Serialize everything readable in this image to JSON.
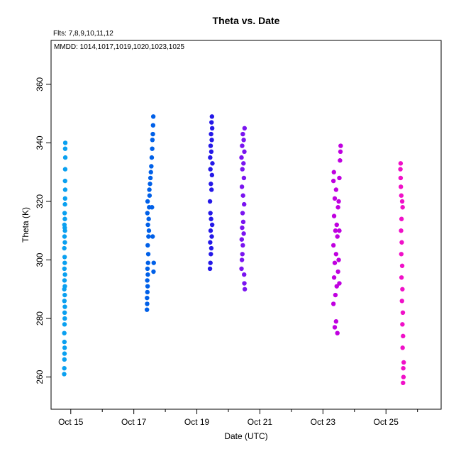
{
  "chart_data": {
    "type": "scatter",
    "title": "Theta  vs. Date",
    "subtitle": "Flts: 7,8,9,10,11,12",
    "annotation": "MMDD: 1014,1017,1019,1020,1023,1025",
    "xlabel": "Date (UTC)",
    "ylabel": "Theta (K)",
    "xlim": [
      "2014-10-14T09:00",
      "2014-10-26T18:00"
    ],
    "ylim": [
      249,
      375
    ],
    "x_ticks": [
      "2014-10-15",
      "2014-10-17",
      "2014-10-19",
      "2014-10-21",
      "2014-10-23",
      "2014-10-25"
    ],
    "x_tick_labels": [
      "Oct 15",
      "Oct 17",
      "Oct 19",
      "Oct 21",
      "Oct 23",
      "Oct 25"
    ],
    "y_ticks": [
      260,
      280,
      300,
      320,
      340,
      360
    ],
    "grid": false,
    "legend": "none",
    "series": [
      {
        "color": "#0aa0f0",
        "points": [
          [
            "2014-10-14T19:00",
            261
          ],
          [
            "2014-10-14T19:05",
            263
          ],
          [
            "2014-10-14T19:10",
            266
          ],
          [
            "2014-10-14T19:15",
            268
          ],
          [
            "2014-10-14T19:20",
            270
          ],
          [
            "2014-10-14T19:10",
            272
          ],
          [
            "2014-10-14T19:05",
            275
          ],
          [
            "2014-10-14T19:15",
            278
          ],
          [
            "2014-10-14T19:25",
            280
          ],
          [
            "2014-10-14T19:20",
            282
          ],
          [
            "2014-10-14T19:30",
            284
          ],
          [
            "2014-10-14T19:10",
            286
          ],
          [
            "2014-10-14T19:25",
            288
          ],
          [
            "2014-10-14T19:05",
            290
          ],
          [
            "2014-10-14T19:30",
            291
          ],
          [
            "2014-10-14T19:15",
            293
          ],
          [
            "2014-10-14T19:35",
            295
          ],
          [
            "2014-10-14T19:10",
            297
          ],
          [
            "2014-10-14T19:25",
            299
          ],
          [
            "2014-10-14T19:20",
            301
          ],
          [
            "2014-10-14T19:05",
            304
          ],
          [
            "2014-10-14T19:30",
            306
          ],
          [
            "2014-10-14T19:15",
            308
          ],
          [
            "2014-10-14T19:35",
            310
          ],
          [
            "2014-10-14T19:25",
            311
          ],
          [
            "2014-10-14T19:10",
            312
          ],
          [
            "2014-10-14T19:30",
            314
          ],
          [
            "2014-10-14T19:20",
            316
          ],
          [
            "2014-10-14T19:35",
            319
          ],
          [
            "2014-10-14T19:40",
            321
          ],
          [
            "2014-10-14T19:45",
            324
          ],
          [
            "2014-10-14T19:40",
            327
          ],
          [
            "2014-10-14T19:45",
            331
          ],
          [
            "2014-10-14T19:50",
            335
          ],
          [
            "2014-10-14T19:45",
            338
          ],
          [
            "2014-10-14T19:50",
            340
          ]
        ]
      },
      {
        "color": "#0060e8",
        "points": [
          [
            "2014-10-17T10:00",
            283
          ],
          [
            "2014-10-17T10:10",
            285
          ],
          [
            "2014-10-17T10:05",
            287
          ],
          [
            "2014-10-17T10:20",
            289
          ],
          [
            "2014-10-17T10:30",
            291
          ],
          [
            "2014-10-17T10:15",
            293
          ],
          [
            "2014-10-17T10:40",
            295
          ],
          [
            "2014-10-17T10:25",
            297
          ],
          [
            "2014-10-17T10:50",
            299
          ],
          [
            "2014-10-17T11:00",
            302
          ],
          [
            "2014-10-17T10:35",
            305
          ],
          [
            "2014-10-17T11:10",
            308
          ],
          [
            "2014-10-17T11:30",
            310
          ],
          [
            "2014-10-17T10:45",
            312
          ],
          [
            "2014-10-17T11:20",
            314
          ],
          [
            "2014-10-17T10:20",
            316
          ],
          [
            "2014-10-17T11:40",
            318
          ],
          [
            "2014-10-17T10:30",
            320
          ],
          [
            "2014-10-17T12:00",
            322
          ],
          [
            "2014-10-17T11:50",
            324
          ],
          [
            "2014-10-17T12:20",
            326
          ],
          [
            "2014-10-17T12:40",
            328
          ],
          [
            "2014-10-17T13:00",
            330
          ],
          [
            "2014-10-17T13:20",
            332
          ],
          [
            "2014-10-17T13:40",
            335
          ],
          [
            "2014-10-17T14:00",
            338
          ],
          [
            "2014-10-17T14:10",
            341
          ],
          [
            "2014-10-17T14:30",
            343
          ],
          [
            "2014-10-17T14:40",
            346
          ],
          [
            "2014-10-17T14:50",
            349
          ],
          [
            "2014-10-17T15:00",
            296
          ],
          [
            "2014-10-17T15:10",
            299
          ],
          [
            "2014-10-17T14:20",
            308
          ],
          [
            "2014-10-17T13:50",
            318
          ]
        ]
      },
      {
        "color": "#2418e8",
        "points": [
          [
            "2014-10-19T10:00",
            297
          ],
          [
            "2014-10-19T10:20",
            299
          ],
          [
            "2014-10-19T10:40",
            302
          ],
          [
            "2014-10-19T11:00",
            304
          ],
          [
            "2014-10-19T10:10",
            306
          ],
          [
            "2014-10-19T11:20",
            308
          ],
          [
            "2014-10-19T10:30",
            310
          ],
          [
            "2014-10-19T11:40",
            312
          ],
          [
            "2014-10-19T10:50",
            314
          ],
          [
            "2014-10-19T10:20",
            316
          ],
          [
            "2014-10-19T10:00",
            320
          ],
          [
            "2014-10-19T11:10",
            324
          ],
          [
            "2014-10-19T10:40",
            326
          ],
          [
            "2014-10-19T11:30",
            329
          ],
          [
            "2014-10-19T10:20",
            331
          ],
          [
            "2014-10-19T11:50",
            333
          ],
          [
            "2014-10-19T10:10",
            335
          ],
          [
            "2014-10-19T11:00",
            337
          ],
          [
            "2014-10-19T10:30",
            339
          ],
          [
            "2014-10-19T11:20",
            341
          ],
          [
            "2014-10-19T10:50",
            343
          ],
          [
            "2014-10-19T11:40",
            345
          ],
          [
            "2014-10-19T11:10",
            347
          ],
          [
            "2014-10-19T11:30",
            349
          ]
        ]
      },
      {
        "color": "#7a14f0",
        "points": [
          [
            "2014-10-20T10:00",
            297
          ],
          [
            "2014-10-20T10:20",
            300
          ],
          [
            "2014-10-20T10:40",
            302
          ],
          [
            "2014-10-20T12:30",
            290
          ],
          [
            "2014-10-20T12:10",
            292
          ],
          [
            "2014-10-20T12:00",
            295
          ],
          [
            "2014-10-20T11:00",
            305
          ],
          [
            "2014-10-20T10:10",
            307
          ],
          [
            "2014-10-20T11:40",
            309
          ],
          [
            "2014-10-20T10:30",
            311
          ],
          [
            "2014-10-20T11:20",
            313
          ],
          [
            "2014-10-20T10:50",
            316
          ],
          [
            "2014-10-20T12:00",
            319
          ],
          [
            "2014-10-20T11:10",
            322
          ],
          [
            "2014-10-20T10:20",
            325
          ],
          [
            "2014-10-20T11:50",
            328
          ],
          [
            "2014-10-20T10:40",
            331
          ],
          [
            "2014-10-20T11:30",
            333
          ],
          [
            "2014-10-20T10:00",
            335
          ],
          [
            "2014-10-20T12:10",
            337
          ],
          [
            "2014-10-20T10:30",
            339
          ],
          [
            "2014-10-20T11:40",
            341
          ],
          [
            "2014-10-20T11:00",
            343
          ],
          [
            "2014-10-20T12:20",
            345
          ]
        ]
      },
      {
        "color": "#c000e0",
        "points": [
          [
            "2014-10-23T09:00",
            277
          ],
          [
            "2014-10-23T10:00",
            279
          ],
          [
            "2014-10-23T11:00",
            275
          ],
          [
            "2014-10-23T08:00",
            285
          ],
          [
            "2014-10-23T09:30",
            288
          ],
          [
            "2014-10-23T10:30",
            291
          ],
          [
            "2014-10-23T08:30",
            294
          ],
          [
            "2014-10-23T11:30",
            296
          ],
          [
            "2014-10-23T09:00",
            299
          ],
          [
            "2014-10-23T10:00",
            302
          ],
          [
            "2014-10-23T08:00",
            305
          ],
          [
            "2014-10-23T11:00",
            308
          ],
          [
            "2014-10-23T09:30",
            310
          ],
          [
            "2014-10-23T10:30",
            312
          ],
          [
            "2014-10-23T08:30",
            315
          ],
          [
            "2014-10-23T11:30",
            318
          ],
          [
            "2014-10-23T09:00",
            321
          ],
          [
            "2014-10-23T10:00",
            324
          ],
          [
            "2014-10-23T08:00",
            327
          ],
          [
            "2014-10-23T08:20",
            330
          ],
          [
            "2014-10-23T12:30",
            292
          ],
          [
            "2014-10-23T12:00",
            300
          ],
          [
            "2014-10-23T12:30",
            310
          ],
          [
            "2014-10-23T12:00",
            320
          ],
          [
            "2014-10-23T12:30",
            328
          ],
          [
            "2014-10-23T13:00",
            334
          ],
          [
            "2014-10-23T13:20",
            337
          ],
          [
            "2014-10-23T13:30",
            339
          ]
        ]
      },
      {
        "color": "#f010c8",
        "points": [
          [
            "2014-10-25T13:00",
            258
          ],
          [
            "2014-10-25T13:20",
            260
          ],
          [
            "2014-10-25T13:10",
            263
          ],
          [
            "2014-10-25T13:30",
            265
          ],
          [
            "2014-10-25T12:40",
            270
          ],
          [
            "2014-10-25T13:00",
            274
          ],
          [
            "2014-10-25T12:30",
            278
          ],
          [
            "2014-10-25T12:50",
            282
          ],
          [
            "2014-10-25T12:10",
            286
          ],
          [
            "2014-10-25T12:30",
            290
          ],
          [
            "2014-10-25T11:50",
            294
          ],
          [
            "2014-10-25T12:20",
            298
          ],
          [
            "2014-10-25T11:40",
            302
          ],
          [
            "2014-10-25T12:00",
            306
          ],
          [
            "2014-10-25T11:30",
            310
          ],
          [
            "2014-10-25T11:50",
            314
          ],
          [
            "2014-10-25T12:40",
            318
          ],
          [
            "2014-10-25T12:20",
            320
          ],
          [
            "2014-10-25T11:40",
            322
          ],
          [
            "2014-10-25T11:20",
            325
          ],
          [
            "2014-10-25T11:10",
            328
          ],
          [
            "2014-10-25T11:00",
            331
          ],
          [
            "2014-10-25T11:10",
            333
          ]
        ]
      }
    ]
  }
}
